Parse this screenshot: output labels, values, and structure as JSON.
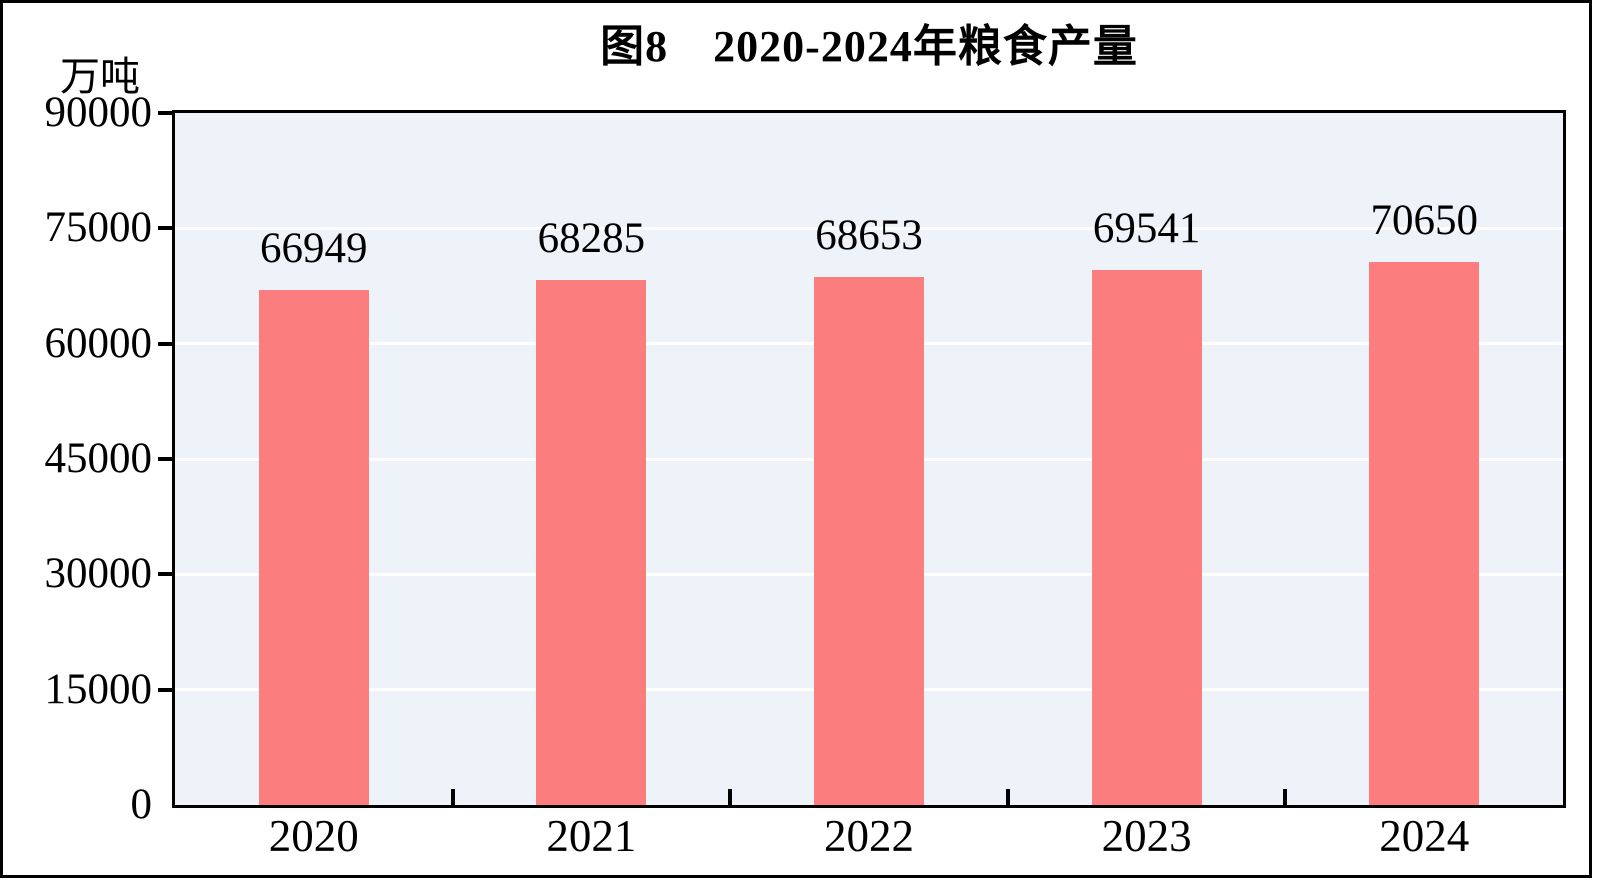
{
  "figure": {
    "title": "图8　2020-2024年粮食产量",
    "unit_label": "万吨"
  },
  "chart_data": {
    "type": "bar",
    "title": "图8　2020-2024年粮食产量",
    "ylabel": "万吨",
    "xlabel": "",
    "categories": [
      "2020",
      "2021",
      "2022",
      "2023",
      "2024"
    ],
    "values": [
      66949,
      68285,
      68653,
      69541,
      70650
    ],
    "data_labels": [
      "66949",
      "68285",
      "68653",
      "69541",
      "70650"
    ],
    "ylim": [
      0,
      90000
    ],
    "yticks": [
      0,
      15000,
      30000,
      45000,
      60000,
      75000,
      90000
    ],
    "grid": true,
    "legend": "none",
    "colors": {
      "bar_fill": "#FC7D7D",
      "plot_background": "#EDF3F8",
      "gridline": "#FFFFFF",
      "axis_frame": "#000000",
      "text": "#000000"
    }
  }
}
